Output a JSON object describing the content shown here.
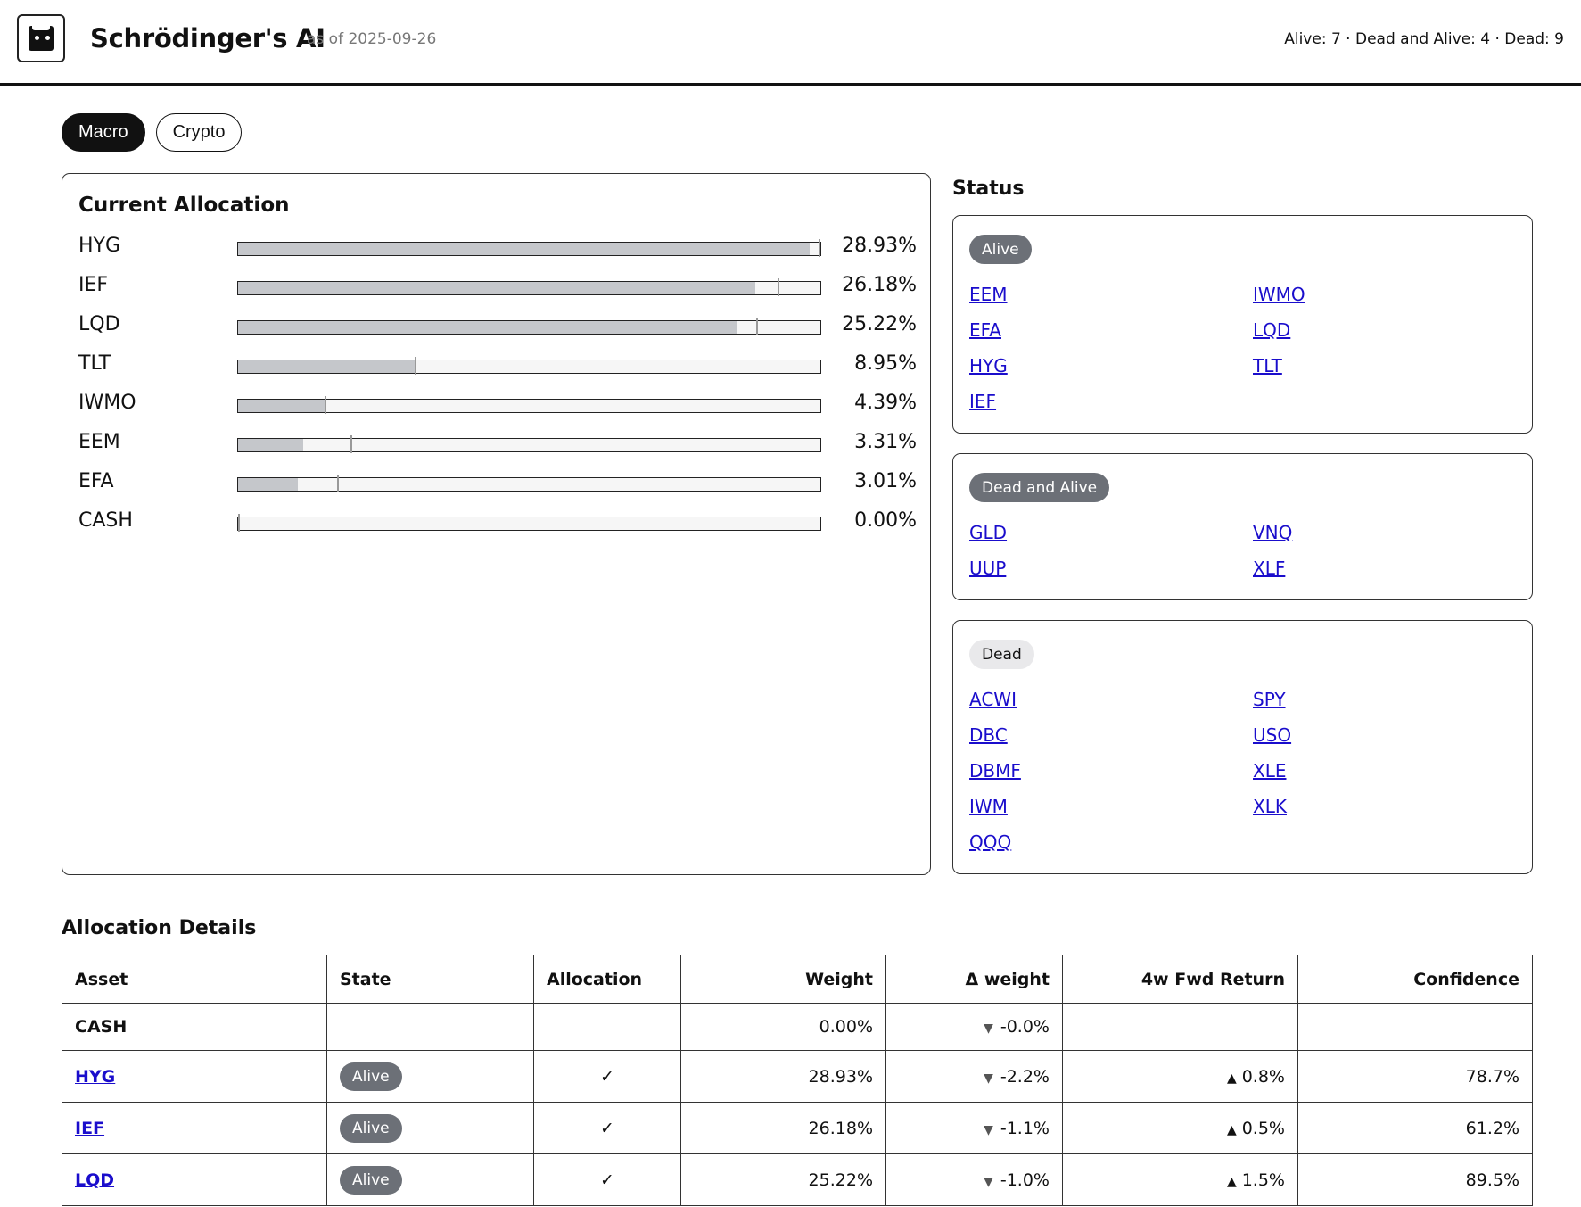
{
  "header": {
    "title": "Schrödinger's AI",
    "as_of": "as of 2025-09-26",
    "summary": "Alive: 7 · Dead and Alive: 4 · Dead: 9"
  },
  "tabs": [
    {
      "label": "Macro",
      "active": true
    },
    {
      "label": "Crypto",
      "active": false
    }
  ],
  "allocation": {
    "title": "Current Allocation",
    "rows": [
      {
        "asset": "HYG",
        "pct_label": "28.93%",
        "weight": 28.93,
        "previous": 31.1
      },
      {
        "asset": "IEF",
        "pct_label": "26.18%",
        "weight": 26.18,
        "previous": 27.3
      },
      {
        "asset": "LQD",
        "pct_label": "25.22%",
        "weight": 25.22,
        "previous": 26.2
      },
      {
        "asset": "TLT",
        "pct_label": "8.95%",
        "weight": 8.95,
        "previous": 8.95
      },
      {
        "asset": "IWMO",
        "pct_label": "4.39%",
        "weight": 4.39,
        "previous": 4.39
      },
      {
        "asset": "EEM",
        "pct_label": "3.31%",
        "weight": 3.31,
        "previous": 5.7
      },
      {
        "asset": "EFA",
        "pct_label": "3.01%",
        "weight": 3.01,
        "previous": 5.0
      },
      {
        "asset": "CASH",
        "pct_label": "0.00%",
        "weight": 0.0,
        "previous": 0.0
      }
    ]
  },
  "status": {
    "title": "Status",
    "groups": [
      {
        "label": "Alive",
        "style": "dark",
        "items": [
          "EEM",
          "EFA",
          "HYG",
          "IEF",
          "IWMO",
          "LQD",
          "TLT"
        ]
      },
      {
        "label": "Dead and Alive",
        "style": "dark",
        "items": [
          "GLD",
          "UUP",
          "VNQ",
          "XLF"
        ]
      },
      {
        "label": "Dead",
        "style": "light",
        "items": [
          "ACWI",
          "DBC",
          "DBMF",
          "IWM",
          "QQQ",
          "SPY",
          "USO",
          "XLE",
          "XLK"
        ]
      }
    ]
  },
  "details": {
    "title": "Allocation Details",
    "columns": [
      "Asset",
      "State",
      "Allocation",
      "Weight",
      "Δ weight",
      "4w Fwd Return",
      "Confidence"
    ],
    "rows": [
      {
        "asset": "CASH",
        "link": false,
        "state": "",
        "allocation": "",
        "weight": "0.00%",
        "delta": "-0.0%",
        "delta_dir": "down",
        "fwd_return": "",
        "fwd_dir": "",
        "confidence": ""
      },
      {
        "asset": "HYG",
        "link": true,
        "state": "Alive",
        "allocation": "✓",
        "weight": "28.93%",
        "delta": "-2.2%",
        "delta_dir": "down",
        "fwd_return": "0.8%",
        "fwd_dir": "up",
        "confidence": "78.7%"
      },
      {
        "asset": "IEF",
        "link": true,
        "state": "Alive",
        "allocation": "✓",
        "weight": "26.18%",
        "delta": "-1.1%",
        "delta_dir": "down",
        "fwd_return": "0.5%",
        "fwd_dir": "up",
        "confidence": "61.2%"
      },
      {
        "asset": "LQD",
        "link": true,
        "state": "Alive",
        "allocation": "✓",
        "weight": "25.22%",
        "delta": "-1.0%",
        "delta_dir": "down",
        "fwd_return": "1.5%",
        "fwd_dir": "up",
        "confidence": "89.5%"
      }
    ]
  },
  "icons": {
    "logo": "cat-box-icon",
    "down_arrow": "▼",
    "up_arrow": "▲"
  }
}
